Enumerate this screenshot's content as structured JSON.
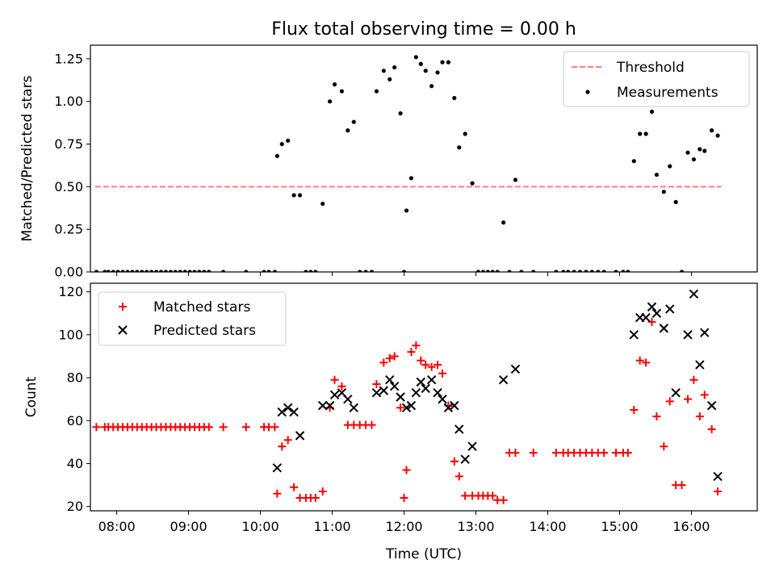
{
  "chart_data": [
    {
      "type": "scatter",
      "title": "Flux total observing time = 0.00 h",
      "xlabel": "",
      "ylabel": "Matched/Predicted stars",
      "xlim": [
        "07:38",
        "16:55"
      ],
      "ylim": [
        0,
        1.33
      ],
      "yticks": [
        0,
        0.25,
        0.5,
        0.75,
        1.0,
        1.25
      ],
      "ytick_labels": [
        "0.00",
        "0.25",
        "0.50",
        "0.75",
        "1.00",
        "1.25"
      ],
      "xticks": [
        "08:00",
        "09:00",
        "10:00",
        "11:00",
        "12:00",
        "13:00",
        "14:00",
        "15:00",
        "16:00"
      ],
      "legend": {
        "placement": "upper right",
        "entries": [
          "Threshold",
          "Measurements"
        ]
      },
      "series": [
        {
          "name": "Threshold",
          "kind": "dashed-line",
          "color": "#ff7f7f",
          "x": [
            "07:42",
            "16:25"
          ],
          "y": [
            0.5,
            0.5
          ]
        },
        {
          "name": "Measurements",
          "kind": "dots",
          "color": "#000000",
          "points": [
            [
              "07:43",
              0
            ],
            [
              "07:50",
              0
            ],
            [
              "07:53",
              0
            ],
            [
              "07:57",
              0
            ],
            [
              "08:01",
              0
            ],
            [
              "08:05",
              0
            ],
            [
              "08:09",
              0
            ],
            [
              "08:13",
              0
            ],
            [
              "08:17",
              0
            ],
            [
              "08:21",
              0
            ],
            [
              "08:25",
              0
            ],
            [
              "08:29",
              0
            ],
            [
              "08:33",
              0
            ],
            [
              "08:37",
              0
            ],
            [
              "08:41",
              0
            ],
            [
              "08:45",
              0
            ],
            [
              "08:49",
              0
            ],
            [
              "08:53",
              0
            ],
            [
              "08:57",
              0
            ],
            [
              "09:01",
              0
            ],
            [
              "09:05",
              0
            ],
            [
              "09:09",
              0
            ],
            [
              "09:13",
              0
            ],
            [
              "09:17",
              0
            ],
            [
              "09:29",
              0
            ],
            [
              "09:48",
              0
            ],
            [
              "10:03",
              0
            ],
            [
              "10:07",
              0
            ],
            [
              "10:12",
              0
            ],
            [
              "10:14",
              0.68
            ],
            [
              "10:18",
              0.75
            ],
            [
              "10:23",
              0.77
            ],
            [
              "10:28",
              0.45
            ],
            [
              "10:33",
              0.45
            ],
            [
              "10:38",
              0
            ],
            [
              "10:42",
              0
            ],
            [
              "10:46",
              0
            ],
            [
              "10:52",
              0.4
            ],
            [
              "10:58",
              1.0
            ],
            [
              "11:02",
              1.1
            ],
            [
              "11:08",
              1.06
            ],
            [
              "11:13",
              0.83
            ],
            [
              "11:18",
              0.88
            ],
            [
              "11:23",
              0
            ],
            [
              "11:28",
              0
            ],
            [
              "11:33",
              0
            ],
            [
              "11:37",
              1.06
            ],
            [
              "11:43",
              1.18
            ],
            [
              "11:48",
              1.13
            ],
            [
              "11:52",
              1.2
            ],
            [
              "11:57",
              0.93
            ],
            [
              "12:00",
              0
            ],
            [
              "12:02",
              0.36
            ],
            [
              "12:06",
              0.55
            ],
            [
              "12:10",
              1.26
            ],
            [
              "12:14",
              1.22
            ],
            [
              "12:18",
              1.18
            ],
            [
              "12:23",
              1.09
            ],
            [
              "12:28",
              1.17
            ],
            [
              "12:32",
              1.23
            ],
            [
              "12:37",
              1.23
            ],
            [
              "12:42",
              1.02
            ],
            [
              "12:46",
              0.73
            ],
            [
              "12:51",
              0.81
            ],
            [
              "12:57",
              0.52
            ],
            [
              "13:02",
              0
            ],
            [
              "13:06",
              0
            ],
            [
              "13:10",
              0
            ],
            [
              "13:14",
              0
            ],
            [
              "13:18",
              0
            ],
            [
              "13:23",
              0.29
            ],
            [
              "13:28",
              0
            ],
            [
              "13:33",
              0.54
            ],
            [
              "13:38",
              0
            ],
            [
              "13:48",
              0
            ],
            [
              "14:07",
              0
            ],
            [
              "14:13",
              0
            ],
            [
              "14:17",
              0
            ],
            [
              "14:22",
              0
            ],
            [
              "14:27",
              0
            ],
            [
              "14:32",
              0
            ],
            [
              "14:37",
              0
            ],
            [
              "14:42",
              0
            ],
            [
              "14:47",
              0
            ],
            [
              "14:57",
              0
            ],
            [
              "15:03",
              0
            ],
            [
              "15:07",
              0
            ],
            [
              "15:12",
              0.65
            ],
            [
              "15:17",
              0.81
            ],
            [
              "15:22",
              0.81
            ],
            [
              "15:27",
              0.94
            ],
            [
              "15:31",
              0.57
            ],
            [
              "15:37",
              0.47
            ],
            [
              "15:42",
              0.62
            ],
            [
              "15:47",
              0.41
            ],
            [
              "15:52",
              0
            ],
            [
              "15:57",
              0.7
            ],
            [
              "16:02",
              0.66
            ],
            [
              "16:07",
              0.72
            ],
            [
              "16:11",
              0.71
            ],
            [
              "16:17",
              0.83
            ],
            [
              "16:22",
              0.8
            ]
          ]
        }
      ]
    },
    {
      "type": "scatter",
      "title": "",
      "xlabel": "Time (UTC)",
      "ylabel": "Count",
      "xlim": [
        "07:38",
        "16:55"
      ],
      "ylim": [
        18,
        124
      ],
      "yticks": [
        20,
        40,
        60,
        80,
        100,
        120
      ],
      "ytick_labels": [
        "20",
        "40",
        "60",
        "80",
        "100",
        "120"
      ],
      "xticks": [
        "08:00",
        "09:00",
        "10:00",
        "11:00",
        "12:00",
        "13:00",
        "14:00",
        "15:00",
        "16:00"
      ],
      "legend": {
        "placement": "upper left",
        "entries": [
          "Matched stars",
          "Predicted stars"
        ]
      },
      "series": [
        {
          "name": "Matched stars",
          "marker": "plus",
          "color": "#ff0000",
          "points": [
            [
              "07:43",
              57
            ],
            [
              "07:50",
              57
            ],
            [
              "07:53",
              57
            ],
            [
              "07:57",
              57
            ],
            [
              "08:01",
              57
            ],
            [
              "08:05",
              57
            ],
            [
              "08:09",
              57
            ],
            [
              "08:13",
              57
            ],
            [
              "08:17",
              57
            ],
            [
              "08:21",
              57
            ],
            [
              "08:25",
              57
            ],
            [
              "08:29",
              57
            ],
            [
              "08:33",
              57
            ],
            [
              "08:37",
              57
            ],
            [
              "08:41",
              57
            ],
            [
              "08:45",
              57
            ],
            [
              "08:49",
              57
            ],
            [
              "08:53",
              57
            ],
            [
              "08:57",
              57
            ],
            [
              "09:01",
              57
            ],
            [
              "09:05",
              57
            ],
            [
              "09:09",
              57
            ],
            [
              "09:13",
              57
            ],
            [
              "09:17",
              57
            ],
            [
              "09:29",
              57
            ],
            [
              "09:48",
              57
            ],
            [
              "10:03",
              57
            ],
            [
              "10:07",
              57
            ],
            [
              "10:12",
              57
            ],
            [
              "10:14",
              26
            ],
            [
              "10:18",
              48
            ],
            [
              "10:23",
              51
            ],
            [
              "10:28",
              29
            ],
            [
              "10:33",
              24
            ],
            [
              "10:38",
              24
            ],
            [
              "10:42",
              24
            ],
            [
              "10:46",
              24
            ],
            [
              "10:52",
              27
            ],
            [
              "10:58",
              66
            ],
            [
              "11:02",
              79
            ],
            [
              "11:08",
              76
            ],
            [
              "11:13",
              58
            ],
            [
              "11:18",
              58
            ],
            [
              "11:23",
              58
            ],
            [
              "11:28",
              58
            ],
            [
              "11:33",
              58
            ],
            [
              "11:37",
              77
            ],
            [
              "11:43",
              87
            ],
            [
              "11:48",
              89
            ],
            [
              "11:52",
              90
            ],
            [
              "11:57",
              66
            ],
            [
              "12:00",
              24
            ],
            [
              "12:02",
              37
            ],
            [
              "12:06",
              92
            ],
            [
              "12:10",
              95
            ],
            [
              "12:14",
              88
            ],
            [
              "12:18",
              86
            ],
            [
              "12:23",
              85
            ],
            [
              "12:28",
              86
            ],
            [
              "12:32",
              82
            ],
            [
              "12:37",
              67
            ],
            [
              "12:42",
              41
            ],
            [
              "12:46",
              34
            ],
            [
              "12:51",
              25
            ],
            [
              "12:57",
              25
            ],
            [
              "13:02",
              25
            ],
            [
              "13:06",
              25
            ],
            [
              "13:10",
              25
            ],
            [
              "13:14",
              25
            ],
            [
              "13:18",
              23
            ],
            [
              "13:23",
              23
            ],
            [
              "13:28",
              45
            ],
            [
              "13:33",
              45
            ],
            [
              "13:48",
              45
            ],
            [
              "14:07",
              45
            ],
            [
              "14:13",
              45
            ],
            [
              "14:17",
              45
            ],
            [
              "14:22",
              45
            ],
            [
              "14:27",
              45
            ],
            [
              "14:32",
              45
            ],
            [
              "14:37",
              45
            ],
            [
              "14:42",
              45
            ],
            [
              "14:47",
              45
            ],
            [
              "14:57",
              45
            ],
            [
              "15:03",
              45
            ],
            [
              "15:07",
              45
            ],
            [
              "15:12",
              65
            ],
            [
              "15:17",
              88
            ],
            [
              "15:22",
              87
            ],
            [
              "15:27",
              106
            ],
            [
              "15:31",
              62
            ],
            [
              "15:37",
              48
            ],
            [
              "15:42",
              69
            ],
            [
              "15:47",
              30
            ],
            [
              "15:52",
              30
            ],
            [
              "15:57",
              70
            ],
            [
              "16:02",
              79
            ],
            [
              "16:07",
              62
            ],
            [
              "16:11",
              72
            ],
            [
              "16:17",
              56
            ],
            [
              "16:22",
              27
            ]
          ]
        },
        {
          "name": "Predicted stars",
          "marker": "x",
          "color": "#000000",
          "points": [
            [
              "10:14",
              38
            ],
            [
              "10:18",
              64
            ],
            [
              "10:23",
              66
            ],
            [
              "10:28",
              64
            ],
            [
              "10:33",
              53
            ],
            [
              "10:52",
              67
            ],
            [
              "10:58",
              67
            ],
            [
              "11:02",
              72
            ],
            [
              "11:08",
              73
            ],
            [
              "11:13",
              70
            ],
            [
              "11:18",
              66
            ],
            [
              "11:37",
              73
            ],
            [
              "11:43",
              74
            ],
            [
              "11:48",
              79
            ],
            [
              "11:52",
              76
            ],
            [
              "11:57",
              71
            ],
            [
              "12:02",
              66
            ],
            [
              "12:06",
              67
            ],
            [
              "12:10",
              73
            ],
            [
              "12:14",
              78
            ],
            [
              "12:18",
              75
            ],
            [
              "12:23",
              79
            ],
            [
              "12:28",
              73
            ],
            [
              "12:32",
              70
            ],
            [
              "12:37",
              66
            ],
            [
              "12:42",
              67
            ],
            [
              "12:46",
              56
            ],
            [
              "12:51",
              42
            ],
            [
              "12:57",
              48
            ],
            [
              "13:23",
              79
            ],
            [
              "13:33",
              84
            ],
            [
              "15:12",
              100
            ],
            [
              "15:17",
              108
            ],
            [
              "15:22",
              108
            ],
            [
              "15:27",
              113
            ],
            [
              "15:31",
              110
            ],
            [
              "15:37",
              103
            ],
            [
              "15:42",
              112
            ],
            [
              "15:47",
              73
            ],
            [
              "15:57",
              100
            ],
            [
              "16:02",
              119
            ],
            [
              "16:07",
              86
            ],
            [
              "16:11",
              101
            ],
            [
              "16:17",
              67
            ],
            [
              "16:22",
              34
            ]
          ]
        }
      ]
    }
  ]
}
